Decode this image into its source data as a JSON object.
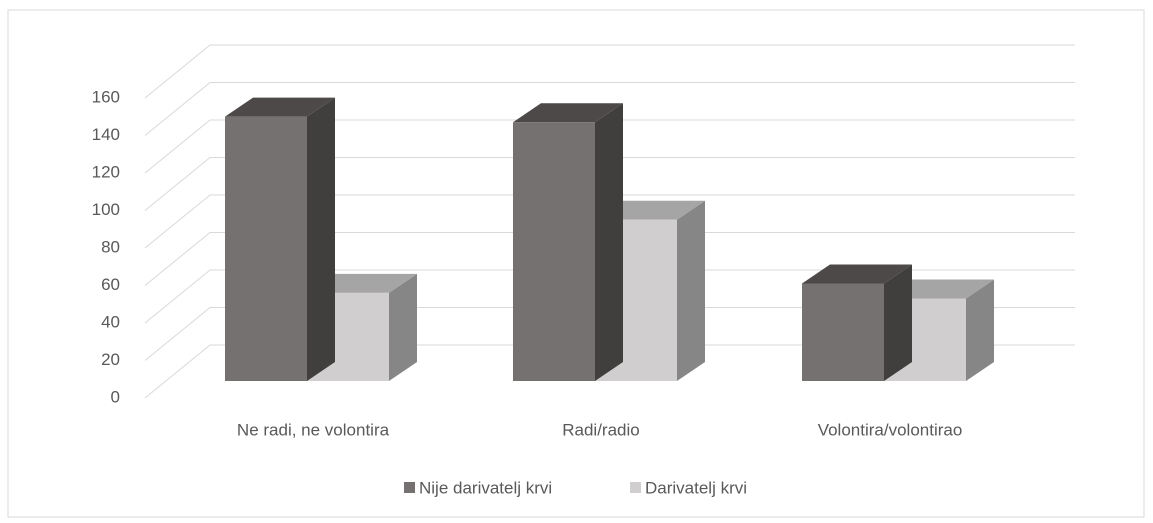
{
  "chart_data": {
    "type": "bar3d",
    "categories": [
      "Ne radi, ne volontira",
      "Radi/radio",
      "Volontira/volontirao"
    ],
    "series": [
      {
        "name": "Nije darivatelj krvi",
        "color": "#767171",
        "values": [
          141,
          138,
          52
        ]
      },
      {
        "name": "Darivatelj krvi",
        "color": "#d0cece",
        "values": [
          47,
          86,
          44
        ]
      }
    ],
    "ylim": [
      0,
      160
    ],
    "yticks": [
      0,
      20,
      40,
      60,
      80,
      100,
      120,
      140,
      160
    ],
    "grid": true,
    "legend": "bottom"
  }
}
